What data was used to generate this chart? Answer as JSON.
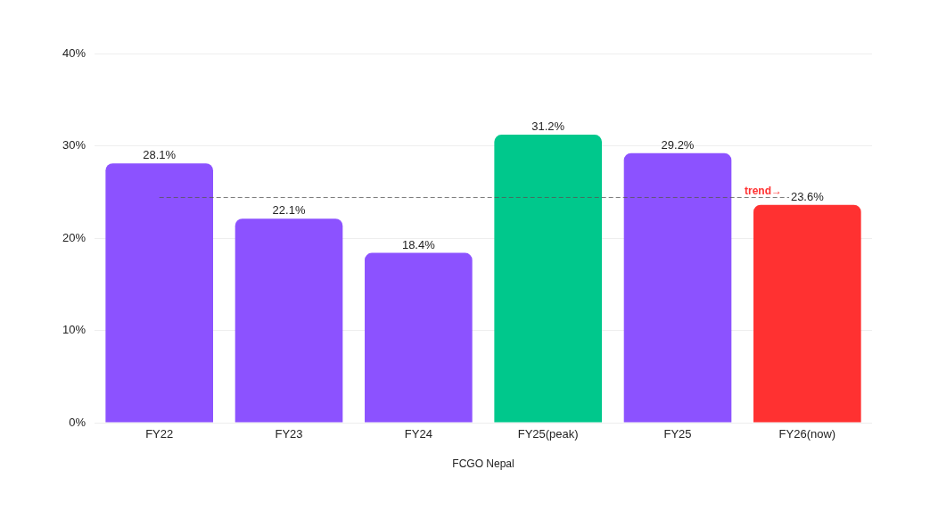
{
  "chart_data": {
    "type": "bar",
    "xlabel": "FCGO Nepal",
    "categories": [
      "FY22",
      "FY23",
      "FY24",
      "FY25(peak)",
      "FY25",
      "FY26(now)"
    ],
    "values": [
      28.1,
      22.1,
      18.4,
      31.2,
      29.2,
      23.6
    ],
    "colors": [
      "#8c52ff",
      "#8c52ff",
      "#8c52ff",
      "#00c88c",
      "#8c52ff",
      "#ff3131"
    ],
    "value_labels": [
      "28.1%",
      "22.1%",
      "18.4%",
      "31.2%",
      "29.2%",
      "23.6%"
    ],
    "ylim": [
      0,
      40
    ],
    "yticks": [
      {
        "value": 0,
        "label": "0%"
      },
      {
        "value": 10,
        "label": "10%"
      },
      {
        "value": 20,
        "label": "20%"
      },
      {
        "value": 30,
        "label": "30%"
      },
      {
        "value": 40,
        "label": "40%"
      }
    ],
    "grid": "y",
    "legend": false,
    "ref_lines": [
      {
        "axis": "y",
        "value": 24.4,
        "label": "trend→",
        "color": "#555555",
        "line_style": "dashed"
      }
    ]
  }
}
